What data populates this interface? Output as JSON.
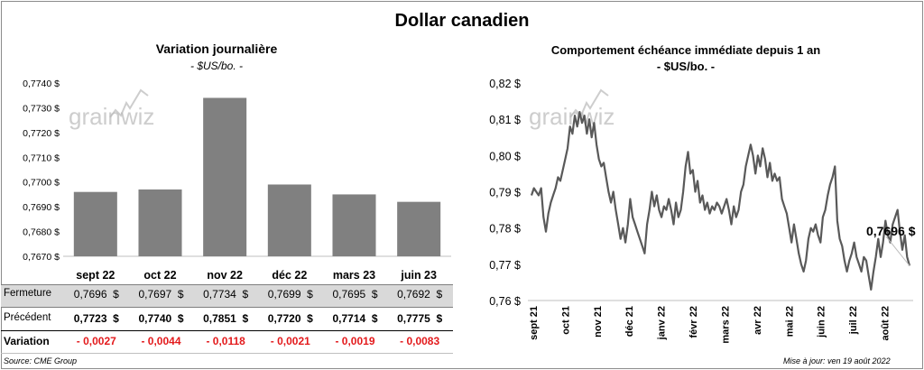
{
  "title": "Dollar canadien",
  "watermark": "grainwiz",
  "left": {
    "title": "Variation  journalière",
    "unit": "- $US/bo. -",
    "chart_data": {
      "type": "bar",
      "title": "Variation  journalière",
      "categories": [
        "sept 22",
        "oct 22",
        "nov 22",
        "déc 22",
        "mars 23",
        "juin 23"
      ],
      "values": [
        0.7696,
        0.7697,
        0.7734,
        0.7699,
        0.7695,
        0.7692
      ],
      "ylim": [
        0.767,
        0.774
      ],
      "yticks": [
        "0,7670 $",
        "0,7680 $",
        "0,7690 $",
        "0,7700 $",
        "0,7710 $",
        "0,7720 $",
        "0,7730 $",
        "0,7740 $"
      ],
      "grid": false,
      "bar_color": "#808080"
    },
    "table": {
      "rows": [
        {
          "label": "Fermeture",
          "values": [
            "0,7696  $",
            "0,7697  $",
            "0,7734  $",
            "0,7699  $",
            "0,7695  $",
            "0,7692  $"
          ]
        },
        {
          "label": "Précédent",
          "values": [
            "0,7723  $",
            "0,7740  $",
            "0,7851  $",
            "0,7720  $",
            "0,7714  $",
            "0,7775  $"
          ]
        },
        {
          "label": "Variation",
          "values": [
            "- 0,0027",
            "- 0,0044",
            "- 0,0118",
            "- 0,0021",
            "- 0,0019",
            "- 0,0083"
          ]
        }
      ]
    },
    "source": "Source: CME Group"
  },
  "right": {
    "title": "Comportement échéance immédiate depuis 1 an",
    "unit": "- $US/bo. -",
    "last_label": "0,7696 $",
    "update": "Mise à jour: ven 19 août 2022",
    "chart_data": {
      "type": "line",
      "title": "Comportement échéance immédiate depuis 1 an",
      "ylim": [
        0.76,
        0.82
      ],
      "yticks": [
        "0,76 $",
        "0,77 $",
        "0,78 $",
        "0,79 $",
        "0,80 $",
        "0,81 $",
        "0,82 $"
      ],
      "xticks": [
        "sept 21",
        "oct 21",
        "nov 21",
        "déc 21",
        "janv 22",
        "févr 22",
        "mars 22",
        "avr 22",
        "mai 22",
        "juin 22",
        "juil 22",
        "août 22"
      ],
      "grid": false,
      "series": [
        {
          "color": "#595959",
          "points": [
            [
              0,
              0.789
            ],
            [
              1.5,
              0.791
            ],
            [
              3,
              0.79
            ],
            [
              4.5,
              0.789
            ],
            [
              6,
              0.791
            ],
            [
              7.5,
              0.783
            ],
            [
              9,
              0.779
            ],
            [
              10.5,
              0.784
            ],
            [
              12,
              0.787
            ],
            [
              13.5,
              0.789
            ],
            [
              15,
              0.791
            ],
            [
              16.5,
              0.794
            ],
            [
              18,
              0.793
            ],
            [
              19.5,
              0.796
            ],
            [
              21,
              0.799
            ],
            [
              22.5,
              0.802
            ],
            [
              24,
              0.808
            ],
            [
              25.5,
              0.806
            ],
            [
              27,
              0.811
            ],
            [
              28.5,
              0.808
            ],
            [
              30,
              0.812
            ],
            [
              31.5,
              0.809
            ],
            [
              33,
              0.811
            ],
            [
              34.5,
              0.806
            ],
            [
              36,
              0.81
            ],
            [
              37.5,
              0.805
            ],
            [
              39,
              0.809
            ],
            [
              40.5,
              0.803
            ],
            [
              42,
              0.799
            ],
            [
              43.5,
              0.797
            ],
            [
              45,
              0.798
            ],
            [
              46.5,
              0.794
            ],
            [
              48,
              0.79
            ],
            [
              49.5,
              0.787
            ],
            [
              51,
              0.79
            ],
            [
              52.5,
              0.785
            ],
            [
              54,
              0.781
            ],
            [
              55.5,
              0.777
            ],
            [
              57,
              0.78
            ],
            [
              58.5,
              0.776
            ],
            [
              60,
              0.781
            ],
            [
              61.5,
              0.788
            ],
            [
              63,
              0.783
            ],
            [
              64.5,
              0.781
            ],
            [
              66,
              0.779
            ],
            [
              67.5,
              0.777
            ],
            [
              69,
              0.775
            ],
            [
              70.5,
              0.773
            ],
            [
              72,
              0.781
            ],
            [
              73.5,
              0.785
            ],
            [
              75,
              0.79
            ],
            [
              76.5,
              0.786
            ],
            [
              78,
              0.789
            ],
            [
              79.5,
              0.785
            ],
            [
              81,
              0.783
            ],
            [
              82.5,
              0.786
            ],
            [
              84,
              0.785
            ],
            [
              85.5,
              0.788
            ],
            [
              87,
              0.785
            ],
            [
              88.5,
              0.781
            ],
            [
              90,
              0.787
            ],
            [
              91.5,
              0.783
            ],
            [
              93,
              0.785
            ],
            [
              94.5,
              0.79
            ],
            [
              96,
              0.797
            ],
            [
              97.5,
              0.801
            ],
            [
              99,
              0.795
            ],
            [
              100.5,
              0.796
            ],
            [
              102,
              0.79
            ],
            [
              103.5,
              0.793
            ],
            [
              105,
              0.787
            ],
            [
              106.5,
              0.789
            ],
            [
              108,
              0.785
            ],
            [
              109.5,
              0.787
            ],
            [
              111,
              0.784
            ],
            [
              112.5,
              0.786
            ],
            [
              114,
              0.785
            ],
            [
              115.5,
              0.787
            ],
            [
              117,
              0.786
            ],
            [
              118.5,
              0.784
            ],
            [
              120,
              0.786
            ],
            [
              121.5,
              0.788
            ],
            [
              123,
              0.785
            ],
            [
              124.5,
              0.781
            ],
            [
              126,
              0.786
            ],
            [
              127.5,
              0.783
            ],
            [
              129,
              0.785
            ],
            [
              130.5,
              0.79
            ],
            [
              132,
              0.792
            ],
            [
              133.5,
              0.797
            ],
            [
              135,
              0.8
            ],
            [
              136.5,
              0.803
            ],
            [
              138,
              0.8
            ],
            [
              139.5,
              0.795
            ],
            [
              141,
              0.8
            ],
            [
              142.5,
              0.797
            ],
            [
              144,
              0.802
            ],
            [
              145.5,
              0.799
            ],
            [
              147,
              0.794
            ],
            [
              148.5,
              0.798
            ],
            [
              150,
              0.793
            ],
            [
              151.5,
              0.795
            ],
            [
              153,
              0.793
            ],
            [
              154.5,
              0.794
            ],
            [
              156,
              0.788
            ],
            [
              157.5,
              0.786
            ],
            [
              159,
              0.784
            ],
            [
              160.5,
              0.78
            ],
            [
              162,
              0.776
            ],
            [
              163.5,
              0.781
            ],
            [
              165,
              0.777
            ],
            [
              166.5,
              0.773
            ],
            [
              168,
              0.77
            ],
            [
              169.5,
              0.768
            ],
            [
              171,
              0.771
            ],
            [
              172.5,
              0.777
            ],
            [
              174,
              0.78
            ],
            [
              175.5,
              0.779
            ],
            [
              177,
              0.781
            ],
            [
              178.5,
              0.778
            ],
            [
              180,
              0.776
            ],
            [
              181.5,
              0.783
            ],
            [
              183,
              0.785
            ],
            [
              184.5,
              0.789
            ],
            [
              186,
              0.792
            ],
            [
              187.5,
              0.794
            ],
            [
              189,
              0.797
            ],
            [
              190.5,
              0.782
            ],
            [
              192,
              0.777
            ],
            [
              193.5,
              0.775
            ],
            [
              195,
              0.771
            ],
            [
              196.5,
              0.768
            ],
            [
              198,
              0.771
            ],
            [
              199.5,
              0.773
            ],
            [
              201,
              0.776
            ],
            [
              202.5,
              0.772
            ],
            [
              204,
              0.77
            ],
            [
              205.5,
              0.768
            ],
            [
              207,
              0.772
            ],
            [
              208.5,
              0.771
            ],
            [
              210,
              0.767
            ],
            [
              211.5,
              0.763
            ],
            [
              213,
              0.768
            ],
            [
              214.5,
              0.772
            ],
            [
              216,
              0.777
            ],
            [
              217.5,
              0.772
            ],
            [
              219,
              0.776
            ],
            [
              220.5,
              0.782
            ],
            [
              222,
              0.778
            ],
            [
              223.5,
              0.776
            ],
            [
              225,
              0.781
            ],
            [
              226.5,
              0.783
            ],
            [
              228,
              0.785
            ],
            [
              229.5,
              0.779
            ],
            [
              231,
              0.774
            ],
            [
              232.5,
              0.778
            ],
            [
              234,
              0.772
            ],
            [
              235.5,
              0.7696
            ]
          ]
        }
      ]
    }
  }
}
